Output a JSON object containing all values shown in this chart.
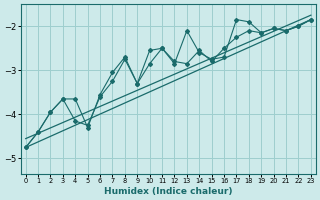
{
  "xlabel": "Humidex (Indice chaleur)",
  "background_color": "#cdeaea",
  "grid_color": "#9ecece",
  "line_color": "#1a6b6b",
  "xlim": [
    -0.4,
    23.4
  ],
  "ylim": [
    -5.35,
    -1.5
  ],
  "yticks": [
    -5,
    -4,
    -3,
    -2
  ],
  "xticks": [
    0,
    1,
    2,
    3,
    4,
    5,
    6,
    7,
    8,
    9,
    10,
    11,
    12,
    13,
    14,
    15,
    16,
    17,
    18,
    19,
    20,
    21,
    22,
    23
  ],
  "series1_x": [
    0,
    1,
    2,
    3,
    4,
    5,
    6,
    7,
    8,
    9,
    10,
    11,
    12,
    13,
    14,
    15,
    16,
    17,
    18,
    19,
    20,
    21,
    22,
    23
  ],
  "series1_y": [
    -4.75,
    -4.4,
    -3.95,
    -3.65,
    -4.15,
    -4.25,
    -3.6,
    -3.25,
    -2.75,
    -3.3,
    -2.55,
    -2.5,
    -2.85,
    -2.1,
    -2.6,
    -2.75,
    -2.7,
    -1.85,
    -1.9,
    -2.15,
    -2.05,
    -2.1,
    -2.0,
    -1.85
  ],
  "series2_x": [
    0,
    1,
    2,
    3,
    4,
    5,
    6,
    7,
    8,
    9,
    10,
    11,
    12,
    13,
    14,
    15,
    16,
    17,
    18,
    19,
    20,
    21,
    22,
    23
  ],
  "series2_y": [
    -4.75,
    -4.4,
    -3.95,
    -3.65,
    -3.65,
    -4.3,
    -3.55,
    -3.05,
    -2.7,
    -3.3,
    -2.85,
    -2.5,
    -2.8,
    -2.85,
    -2.55,
    -2.8,
    -2.5,
    -2.25,
    -2.1,
    -2.15,
    -2.05,
    -2.1,
    -2.0,
    -1.85
  ],
  "trend1_x": [
    0,
    23
  ],
  "trend1_y": [
    -4.75,
    -1.85
  ],
  "trend2_x": [
    0,
    23
  ],
  "trend2_y": [
    -4.55,
    -1.75
  ]
}
